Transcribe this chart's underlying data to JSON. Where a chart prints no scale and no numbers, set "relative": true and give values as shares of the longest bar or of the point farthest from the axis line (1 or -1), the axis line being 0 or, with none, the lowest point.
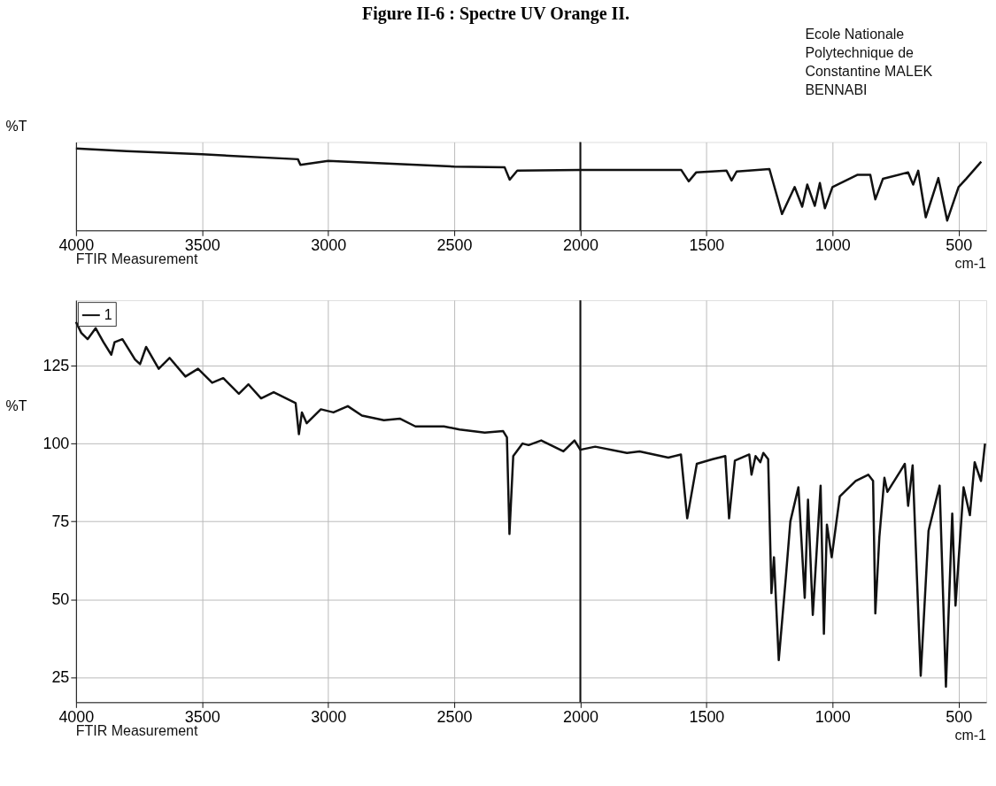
{
  "chart_data": [
    {
      "type": "line",
      "title": "Figure II-6 : Spectre UV Orange II.",
      "relative": true,
      "ylabel": "%T",
      "xlabel": "cm-1",
      "xlim": [
        4000,
        390
      ],
      "xticks": [
        4000,
        3500,
        3000,
        2500,
        2000,
        1500,
        1000,
        500
      ],
      "tick_labels": "x",
      "grid": "x",
      "legend": false,
      "annotations": [
        "Ecole Nationale\nPolytechnique de\nConstantine  MALEK\nBENNABI",
        "FTIR Measurement"
      ],
      "ref_lines": [
        {
          "axis": "x",
          "value": 2000,
          "color": "#111111"
        }
      ],
      "series": [
        {
          "color": "#111111",
          "x": [
            4000,
            3800,
            3500,
            3120,
            3110,
            3000,
            2500,
            2300,
            2280,
            2250,
            2000,
            1600,
            1570,
            1540,
            1420,
            1400,
            1380,
            1250,
            1200,
            1150,
            1120,
            1100,
            1070,
            1050,
            1030,
            1000,
            900,
            850,
            830,
            800,
            700,
            680,
            660,
            630,
            580,
            545,
            500,
            470,
            410
          ],
          "values": [
            1.0,
            0.97,
            0.93,
            0.87,
            0.8,
            0.85,
            0.78,
            0.77,
            0.62,
            0.73,
            0.74,
            0.74,
            0.6,
            0.71,
            0.73,
            0.61,
            0.72,
            0.75,
            0.2,
            0.53,
            0.29,
            0.56,
            0.3,
            0.58,
            0.27,
            0.53,
            0.68,
            0.68,
            0.38,
            0.63,
            0.71,
            0.56,
            0.73,
            0.16,
            0.64,
            0.12,
            0.53,
            0.63,
            0.84
          ]
        }
      ]
    },
    {
      "type": "line",
      "ylabel": "%T",
      "xlabel": "cm-1",
      "xlim": [
        4000,
        390
      ],
      "xticks": [
        4000,
        3500,
        3000,
        2500,
        2000,
        1500,
        1000,
        500
      ],
      "ylim": [
        17,
        146
      ],
      "yticks": [
        25,
        50,
        75,
        100,
        125
      ],
      "grid": true,
      "legend": "top left",
      "annotations": [
        "FTIR Measurement"
      ],
      "ref_lines": [
        {
          "axis": "x",
          "value": 2000,
          "color": "#111111"
        }
      ],
      "series": [
        {
          "name": "1",
          "color": "#111111",
          "x": [
            4000,
            3979,
            3954,
            3922,
            3891,
            3860,
            3847,
            3816,
            3766,
            3746,
            3722,
            3672,
            3629,
            3566,
            3516,
            3460,
            3416,
            3354,
            3316,
            3266,
            3216,
            3129,
            3116,
            3104,
            3085,
            3029,
            2979,
            2922,
            2866,
            2779,
            2716,
            2654,
            2541,
            2479,
            2379,
            2306,
            2291,
            2281,
            2266,
            2229,
            2205,
            2155,
            2067,
            2023,
            2000,
            1941,
            1815,
            1765,
            1651,
            1601,
            1576,
            1538,
            1475,
            1425,
            1410,
            1387,
            1330,
            1321,
            1305,
            1286,
            1274,
            1255,
            1242,
            1232,
            1213,
            1185,
            1167,
            1135,
            1110,
            1097,
            1078,
            1047,
            1034,
            1022,
            1003,
            971,
            908,
            858,
            839,
            830,
            814,
            794,
            782,
            732,
            713,
            700,
            682,
            650,
            619,
            575,
            550,
            525,
            512,
            480,
            455,
            436,
            411,
            395
          ],
          "values": [
            139,
            135.5,
            133.5,
            137,
            132.5,
            128.5,
            132.5,
            133.5,
            127,
            125.5,
            131,
            124,
            127.5,
            121.5,
            124,
            119.5,
            121,
            116,
            119,
            114.5,
            116.5,
            113,
            103,
            110,
            106.5,
            111,
            110,
            112,
            109,
            107.5,
            108,
            105.5,
            105.5,
            104.5,
            103.5,
            104,
            102,
            71,
            96,
            100,
            99.5,
            101,
            97.5,
            101,
            98,
            99,
            97,
            97.5,
            95.5,
            96.5,
            76,
            93.5,
            95,
            96,
            76,
            94.5,
            96.5,
            90,
            96,
            94,
            97,
            95,
            52,
            63.5,
            30.5,
            57,
            75,
            86,
            50.5,
            82,
            45,
            86.5,
            39,
            74,
            63.5,
            83,
            88,
            90,
            88,
            45.5,
            70,
            89,
            84.5,
            91,
            93.5,
            80,
            93,
            25.5,
            72,
            86.5,
            22,
            77.5,
            48,
            86,
            77,
            94,
            88,
            100
          ]
        }
      ]
    }
  ]
}
